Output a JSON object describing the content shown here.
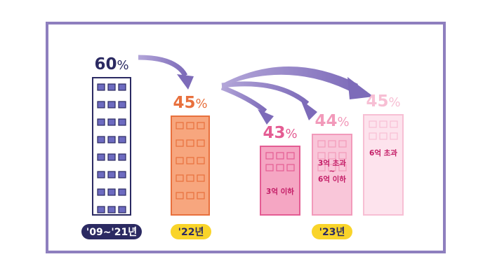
{
  "chart_data": {
    "type": "bar",
    "title": "",
    "xlabel": "",
    "ylabel": "",
    "ylim": [
      0,
      60
    ],
    "value_unit": "%",
    "categories": [
      "'09~'21년",
      "'22년",
      "3억 이하",
      "3억 초과 ~ 6억 이하",
      "6억 초과"
    ],
    "values": [
      60,
      45,
      43,
      44,
      45
    ],
    "bar_labels": [
      "",
      "",
      "3억 이하",
      "3억 초과\n~\n6억 이하",
      "6억 초과"
    ],
    "period_labels": [
      "'09~'21년",
      "'22년",
      "'23년"
    ],
    "colors": {
      "bar_fills": [
        "#ffffff",
        "#f7a67e",
        "#f5a6c3",
        "#f9c6d9",
        "#fde3ed"
      ],
      "bar_strokes": [
        "#2b2a62",
        "#e8703d",
        "#e45c93",
        "#f29aba",
        "#f7bfd4"
      ],
      "window_fills": [
        "#6d6bc0",
        "#f7a67e",
        "#f5a6c3",
        "#f9c6d9",
        "#fde3ed"
      ],
      "value_colors": [
        "#2b2a62",
        "#e8703d",
        "#e45c93",
        "#f29aba",
        "#f7bfd4"
      ],
      "label_colors": [
        "",
        "",
        "#c31c66",
        "#c31c66",
        "#c31c66"
      ],
      "pill_fills": [
        "#2b2a62",
        "#f9d42a",
        "#f9d42a"
      ],
      "pill_text": [
        "#ffffff",
        "#2b2a62",
        "#2b2a62"
      ],
      "frame": "#8e7fbe",
      "arrow": "#8e7fbe"
    }
  }
}
